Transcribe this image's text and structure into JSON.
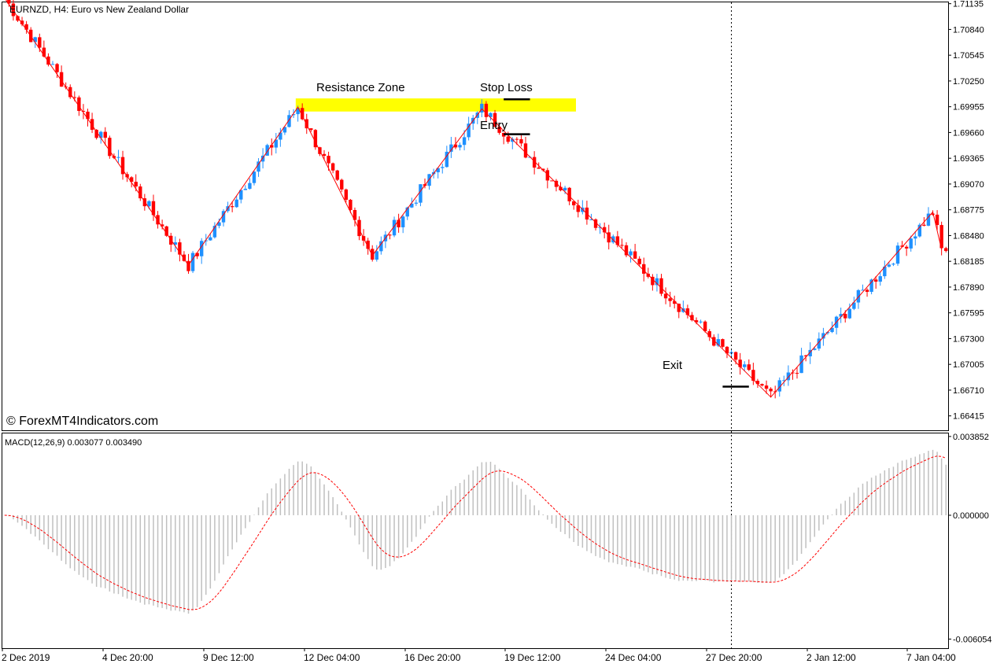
{
  "main_title": "EURNZD, H4:  Euro vs New Zealand Dollar",
  "watermark": "© ForexMT4Indicators.com",
  "macd_title": "MACD(12,26,9) 0.003077 0.003490",
  "annotations": {
    "resistance": "Resistance Zone",
    "stop_loss": "Stop Loss",
    "entry": "Entry",
    "exit": "Exit"
  },
  "colors": {
    "bull": "#1e90ff",
    "bear": "#ff0000",
    "zigzag": "#ff0000",
    "zone": "#ffff00",
    "macd_hist": "#c0c0c0",
    "macd_signal": "#ff0000",
    "text": "#000000"
  },
  "chart_data": [
    {
      "type": "candlestick",
      "title": "EURNZD, H4:  Euro vs New Zealand Dollar",
      "ylim": [
        1.6625,
        1.7115
      ],
      "price_ticks": [
        "1.71135",
        "1.70840",
        "1.70545",
        "1.70250",
        "1.69955",
        "1.69660",
        "1.69365",
        "1.69070",
        "1.68775",
        "1.68480",
        "1.68185",
        "1.67890",
        "1.67595",
        "1.67300",
        "1.67005",
        "1.66710",
        "1.66415"
      ],
      "time_ticks": [
        "2 Dec 2019",
        "4 Dec 20:00",
        "9 Dec 12:00",
        "12 Dec 04:00",
        "16 Dec 20:00",
        "19 Dec 12:00",
        "24 Dec 04:00",
        "27 Dec 20:00",
        "2 Jan 12:00",
        "7 Jan 04:00"
      ],
      "zigzag": [
        [
          0,
          1.712
        ],
        [
          42,
          1.6814
        ],
        [
          67,
          1.6995
        ],
        [
          84,
          1.6825
        ],
        [
          109,
          1.6993
        ],
        [
          175,
          1.6663
        ],
        [
          212,
          1.6875
        ],
        [
          214,
          1.6832
        ]
      ],
      "resistance_zone": {
        "bar_from": 67,
        "bar_to": 131,
        "price_from": 1.699,
        "price_to": 1.7005
      },
      "stop_loss": {
        "bar_from": 114,
        "bar_to": 120,
        "price": 1.7004
      },
      "entry": {
        "bar_from": 114,
        "bar_to": 120,
        "price": 1.6964
      },
      "exit": {
        "bar_from": 164,
        "bar_to": 170,
        "price": 1.6675
      },
      "vline_bar": 166
    },
    {
      "type": "histogram",
      "title": "MACD(12,26,9) 0.003077 0.003490",
      "ylim": [
        -0.0065,
        0.004
      ],
      "ticks": [
        "0.003852",
        "0.000000",
        "-0.006054"
      ]
    }
  ]
}
